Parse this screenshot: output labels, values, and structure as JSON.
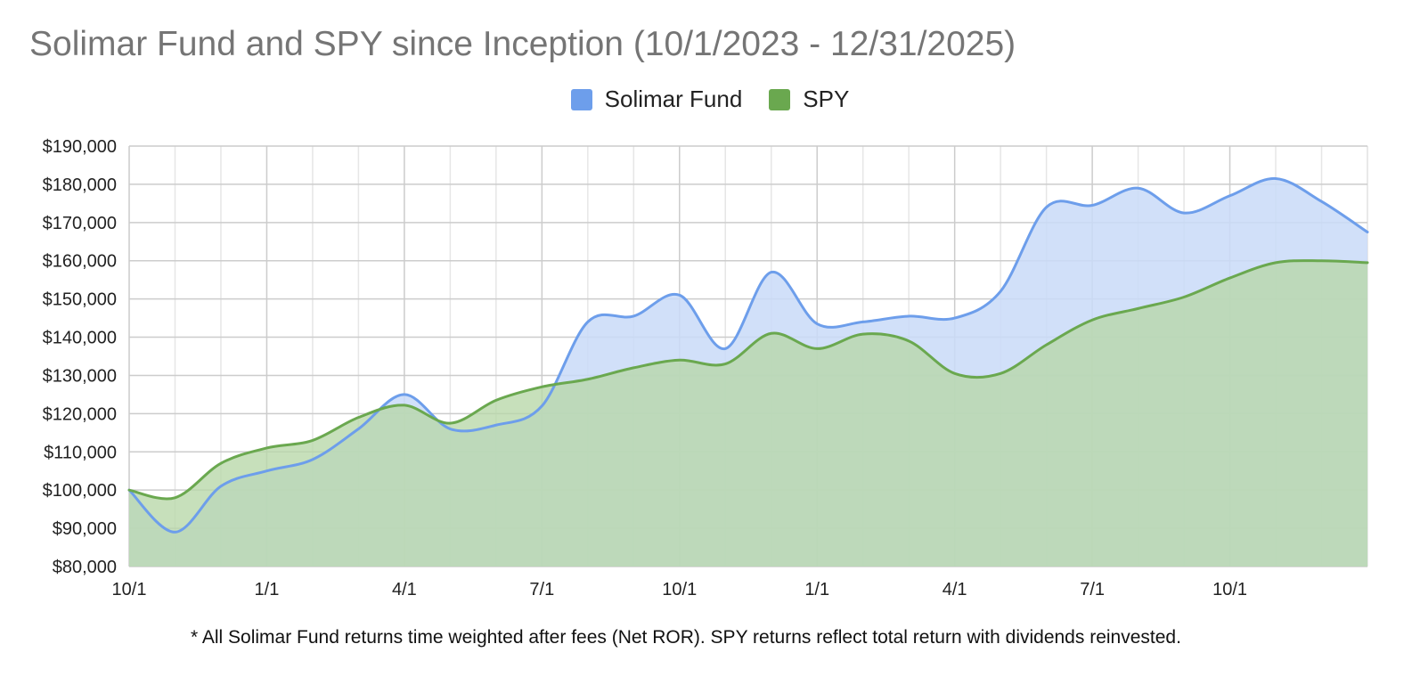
{
  "chart_data": {
    "type": "area",
    "title": "Solimar Fund and SPY since Inception (10/1/2023 - 12/31/2025)",
    "xlabel": "",
    "ylabel": "",
    "ylim": [
      80000,
      190000
    ],
    "y_ticks": [
      80000,
      90000,
      100000,
      110000,
      120000,
      130000,
      140000,
      150000,
      160000,
      170000,
      180000,
      190000
    ],
    "y_tick_labels": [
      "$80,000",
      "$90,000",
      "$100,000",
      "$110,000",
      "$120,000",
      "$130,000",
      "$140,000",
      "$150,000",
      "$160,000",
      "$170,000",
      "$180,000",
      "$190,000"
    ],
    "x_tick_labels": [
      "10/1",
      "1/1",
      "4/1",
      "7/1",
      "10/1",
      "1/1",
      "4/1",
      "7/1",
      "10/1"
    ],
    "x_tick_indices": [
      0,
      3,
      6,
      9,
      12,
      15,
      18,
      21,
      24
    ],
    "x_count": 28,
    "grid": true,
    "legend_position": "top-center",
    "series": [
      {
        "name": "Solimar Fund",
        "color": "#6d9eeb",
        "fill": "#c9daf8",
        "values": [
          100000,
          89000,
          101000,
          105000,
          108000,
          116000,
          125000,
          116000,
          117000,
          122000,
          144000,
          145500,
          151000,
          137000,
          157000,
          143500,
          144000,
          145500,
          145000,
          152000,
          174000,
          174500,
          179000,
          172500,
          177000,
          181500,
          175500,
          167500
        ]
      },
      {
        "name": "SPY",
        "color": "#6aa84f",
        "fill": "#b7d7a8",
        "values": [
          100000,
          98000,
          107000,
          111000,
          113000,
          119000,
          122200,
          117500,
          123500,
          127000,
          129000,
          132000,
          134000,
          133000,
          141000,
          137000,
          140800,
          139000,
          130500,
          130500,
          138000,
          144500,
          147500,
          150500,
          155500,
          159500,
          160000,
          159500
        ]
      }
    ]
  },
  "footnote": "* All Solimar Fund returns time weighted after fees (Net ROR). SPY returns reflect total return with dividends reinvested."
}
